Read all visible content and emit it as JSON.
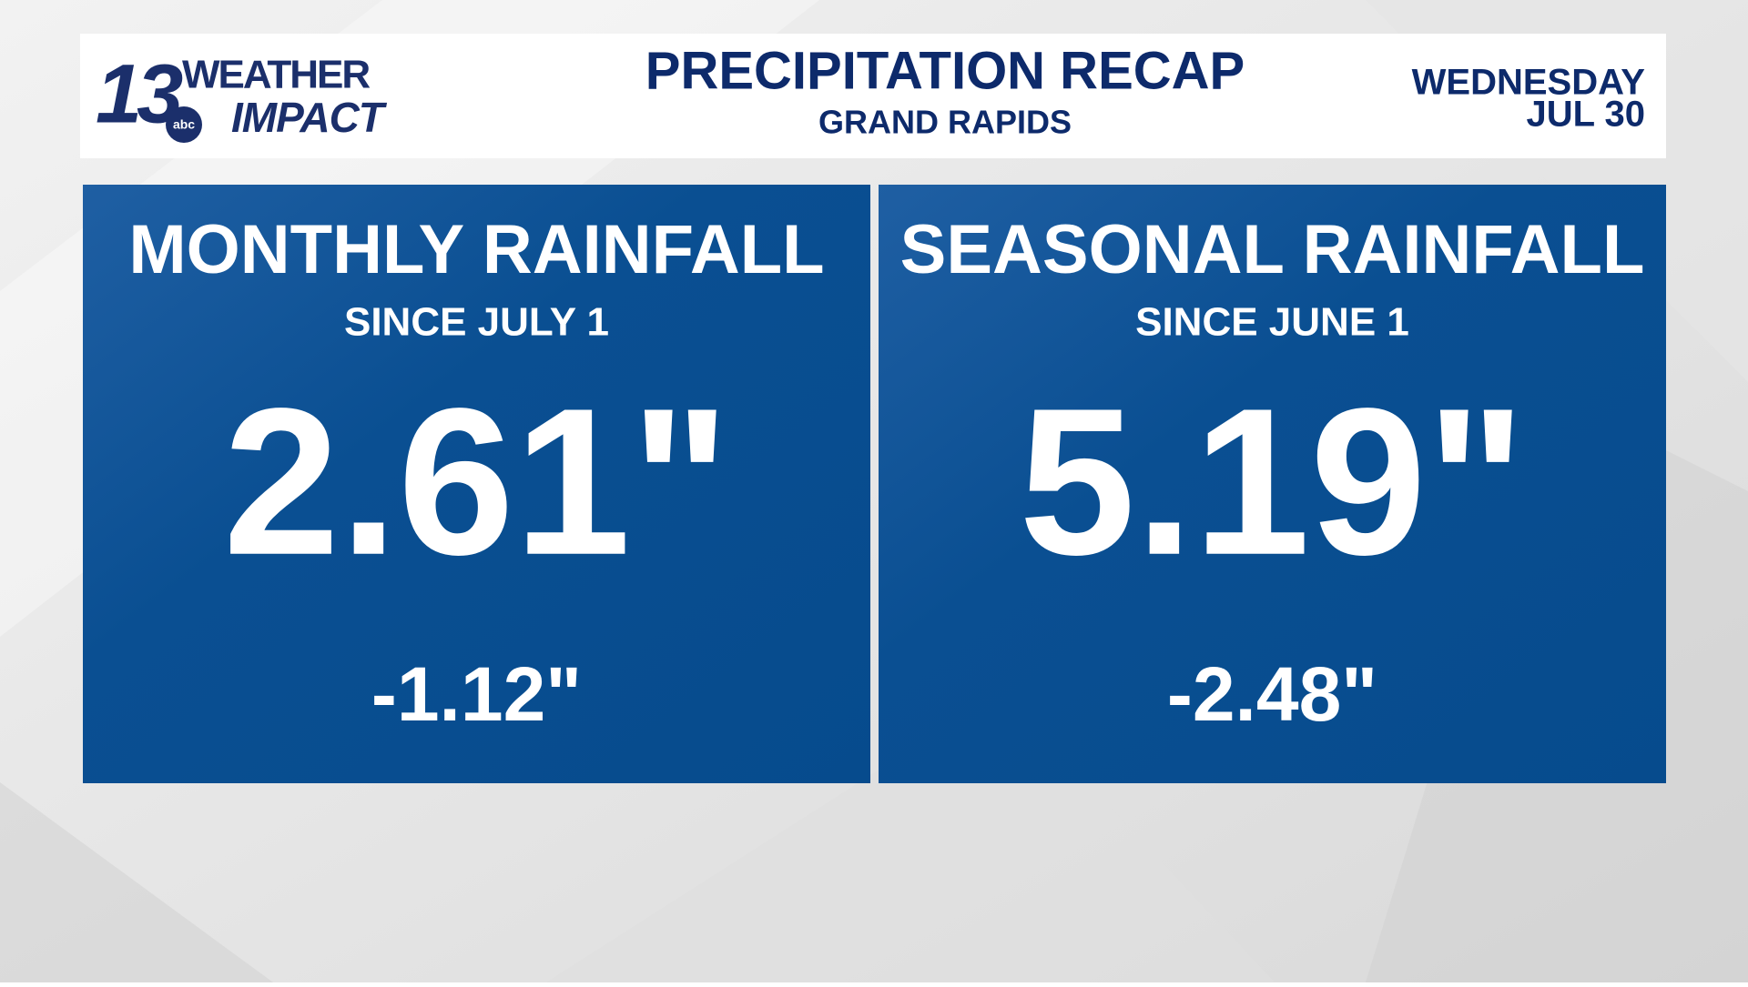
{
  "header": {
    "logo": {
      "number": "13",
      "network": "abc",
      "line1": "WEATHER",
      "line2": "IMPACT"
    },
    "title": "PRECIPITATION RECAP",
    "subtitle": "GRAND RAPIDS",
    "day": "WEDNESDAY",
    "date": "JUL 30"
  },
  "panels": [
    {
      "title": "MONTHLY RAINFALL",
      "subtitle": "SINCE JULY 1",
      "value": "2.61\"",
      "departure": "-1.12\""
    },
    {
      "title": "SEASONAL RAINFALL",
      "subtitle": "SINCE JUNE 1",
      "value": "5.19\"",
      "departure": "-2.48\""
    }
  ]
}
